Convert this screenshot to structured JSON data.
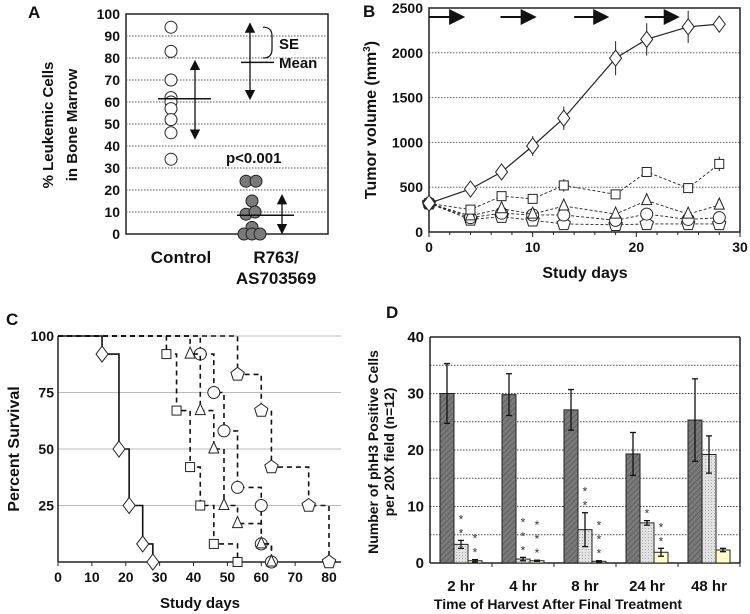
{
  "chart_data": [
    {
      "panel": "A",
      "type": "scatter",
      "ylabel": [
        "% Leukemic Cells",
        "in Bone Marrow"
      ],
      "ylim": [
        0,
        100
      ],
      "yticks": [
        0,
        10,
        20,
        30,
        40,
        50,
        60,
        70,
        80,
        90,
        100
      ],
      "categories": [
        "Control",
        "R763/\nAS703569"
      ],
      "category_lines": [
        [
          "Control"
        ],
        [
          "R763/",
          "AS703569"
        ]
      ],
      "series": [
        {
          "name": "Control",
          "marker": "open-circle",
          "values": [
            94,
            83,
            70,
            62,
            60,
            57,
            52,
            46,
            34
          ],
          "mean": 61.5,
          "se_range": [
            44,
            78
          ]
        },
        {
          "name": "R763/AS703569",
          "marker": "filled-circle",
          "values": [
            24,
            24,
            15,
            9,
            10,
            3,
            0,
            0,
            0
          ],
          "mean": 8.5,
          "se_range": [
            1,
            17
          ]
        }
      ],
      "annotation": "p<0.001",
      "legend": {
        "se": "SE",
        "mean": "Mean"
      }
    },
    {
      "panel": "B",
      "type": "line",
      "xlabel": "Study days",
      "ylabel": "Tumor volume (mm 3)",
      "ylabel_main": "Tumor volume (mm",
      "ylabel_sup": "3",
      "ylabel_end": ")",
      "xlim": [
        0,
        30
      ],
      "ylim": [
        0,
        2500
      ],
      "xticks": [
        0,
        10,
        20,
        30
      ],
      "yticks": [
        0,
        500,
        1000,
        1500,
        2000,
        2500
      ],
      "x": [
        0,
        4,
        7,
        10,
        13,
        18,
        21,
        25,
        28
      ],
      "dosing_arrows": [
        [
          0,
          3.1
        ],
        [
          6.9,
          10
        ],
        [
          14,
          17
        ],
        [
          20.8,
          23.8
        ]
      ],
      "series": [
        {
          "name": "diamond",
          "style": "solid",
          "values": [
            320,
            480,
            670,
            960,
            1270,
            1940,
            2150,
            2290,
            2320
          ],
          "err": [
            0,
            0,
            80,
            110,
            130,
            190,
            180,
            180,
            0
          ]
        },
        {
          "name": "square",
          "style": "dashed",
          "values": [
            320,
            250,
            400,
            370,
            520,
            420,
            670,
            490,
            760
          ],
          "err": [
            0,
            0,
            0,
            0,
            70,
            0,
            50,
            0,
            80
          ]
        },
        {
          "name": "triangle",
          "style": "dashed",
          "values": [
            320,
            180,
            260,
            200,
            290,
            200,
            350,
            200,
            300
          ],
          "err": [
            0,
            0,
            0,
            0,
            0,
            0,
            0,
            0,
            0
          ]
        },
        {
          "name": "circle",
          "style": "dashed",
          "values": [
            320,
            160,
            210,
            190,
            190,
            130,
            200,
            140,
            160
          ],
          "err": [
            0,
            0,
            0,
            0,
            0,
            0,
            0,
            0,
            0
          ]
        },
        {
          "name": "pentagon",
          "style": "dashed",
          "values": [
            320,
            140,
            170,
            130,
            90,
            80,
            90,
            90,
            90
          ],
          "err": [
            0,
            0,
            0,
            0,
            0,
            0,
            0,
            0,
            0
          ]
        }
      ]
    },
    {
      "panel": "C",
      "type": "line",
      "subtype": "kaplan-meier",
      "xlabel": "Study days",
      "ylabel": "Percent Survival",
      "xlim": [
        0,
        80
      ],
      "ylim": [
        0,
        100
      ],
      "xticks": [
        0,
        10,
        20,
        30,
        40,
        50,
        60,
        70,
        80
      ],
      "yticks": [
        25,
        50,
        75,
        100
      ],
      "series": [
        {
          "name": "diamond",
          "style": "solid",
          "steps": [
            [
              13,
              92
            ],
            [
              18,
              50
            ],
            [
              21,
              25
            ],
            [
              25,
              8
            ],
            [
              28,
              0
            ]
          ]
        },
        {
          "name": "square",
          "style": "dashed",
          "steps": [
            [
              32,
              92
            ],
            [
              35,
              67
            ],
            [
              39,
              42
            ],
            [
              42,
              25
            ],
            [
              46,
              8
            ],
            [
              53,
              0
            ]
          ]
        },
        {
          "name": "triangle",
          "style": "dashed",
          "steps": [
            [
              39,
              92
            ],
            [
              42,
              67
            ],
            [
              46,
              50
            ],
            [
              49,
              25
            ],
            [
              53,
              17
            ],
            [
              60,
              8
            ],
            [
              63,
              0
            ]
          ]
        },
        {
          "name": "circle",
          "style": "dashed",
          "steps": [
            [
              42,
              92
            ],
            [
              46,
              75
            ],
            [
              49,
              58
            ],
            [
              53,
              33
            ],
            [
              60,
              25
            ],
            [
              60,
              8
            ],
            [
              63,
              0
            ]
          ]
        },
        {
          "name": "pentagon",
          "style": "dashed",
          "steps": [
            [
              53,
              83
            ],
            [
              60,
              67
            ],
            [
              63,
              42
            ],
            [
              74,
              25
            ],
            [
              80,
              0
            ]
          ]
        }
      ]
    },
    {
      "panel": "D",
      "type": "bar",
      "xlabel": "Time of Harvest After Final Treatment",
      "ylabel": [
        "Number of phH3 Positive Cells",
        "per 20X field (n=12)"
      ],
      "ylim": [
        0,
        40
      ],
      "yticks": [
        0,
        10,
        20,
        30,
        40
      ],
      "categories": [
        "2 hr",
        "4 hr",
        "8 hr",
        "24 hr",
        "48 hr"
      ],
      "series": [
        {
          "name": "dark-hatched",
          "values": [
            30,
            29.8,
            27.1,
            19.3,
            25.3
          ],
          "err": [
            5.3,
            3.7,
            3.6,
            3.8,
            7.3
          ],
          "stars": [
            "",
            "",
            "",
            "",
            ""
          ]
        },
        {
          "name": "light-dotted",
          "values": [
            3.3,
            0.7,
            5.9,
            7.1,
            19.2
          ],
          "err": [
            0.7,
            0.3,
            3.0,
            0.4,
            3.3
          ],
          "stars": [
            "**",
            "***",
            "**",
            "*",
            ""
          ]
        },
        {
          "name": "pale-yellow",
          "values": [
            0.4,
            0.4,
            0.3,
            1.9,
            2.3
          ],
          "err": [
            0.2,
            0.1,
            0.1,
            0.7,
            0.3
          ],
          "stars": [
            "**",
            "***",
            "***",
            "**",
            ""
          ]
        }
      ]
    }
  ],
  "panels": {
    "a": "A",
    "b": "B",
    "c": "C",
    "d": "D"
  },
  "colors": {
    "dark": "#777777",
    "light": "#dcdcdc",
    "yellow": "#ffffc8",
    "filled_circle": "#7a7a7a"
  }
}
